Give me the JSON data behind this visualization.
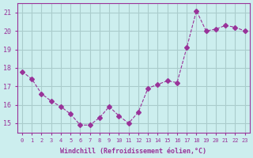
{
  "x": [
    0,
    1,
    2,
    3,
    4,
    5,
    6,
    7,
    8,
    9,
    10,
    11,
    12,
    13,
    14,
    15,
    16,
    17,
    18,
    19,
    20,
    21,
    22,
    23
  ],
  "y": [
    17.8,
    17.4,
    16.6,
    16.2,
    15.9,
    15.5,
    14.9,
    14.9,
    15.3,
    15.9,
    15.4,
    15.0,
    15.6,
    16.9,
    17.1,
    17.3,
    17.2,
    19.1,
    21.1,
    20.0,
    20.1,
    20.3,
    20.2,
    20.0
  ],
  "line_color": "#993399",
  "marker": "D",
  "marker_size": 3,
  "bg_color": "#cceeee",
  "grid_color": "#aacccc",
  "xlabel": "Windchill (Refroidissement éolien,°C)",
  "xlabel_color": "#993399",
  "tick_color": "#993399",
  "ylim": [
    14.5,
    21.5
  ],
  "xlim": [
    -0.5,
    23.5
  ],
  "yticks": [
    15,
    16,
    17,
    18,
    19,
    20,
    21
  ],
  "xticks": [
    0,
    1,
    2,
    3,
    4,
    5,
    6,
    7,
    8,
    9,
    10,
    11,
    12,
    13,
    14,
    15,
    16,
    17,
    18,
    19,
    20,
    21,
    22,
    23
  ],
  "xtick_labels": [
    "0",
    "1",
    "2",
    "3",
    "4",
    "5",
    "6",
    "7",
    "8",
    "9",
    "10",
    "11",
    "12",
    "13",
    "14",
    "15",
    "16",
    "17",
    "18",
    "19",
    "20",
    "21",
    "22",
    "23"
  ]
}
